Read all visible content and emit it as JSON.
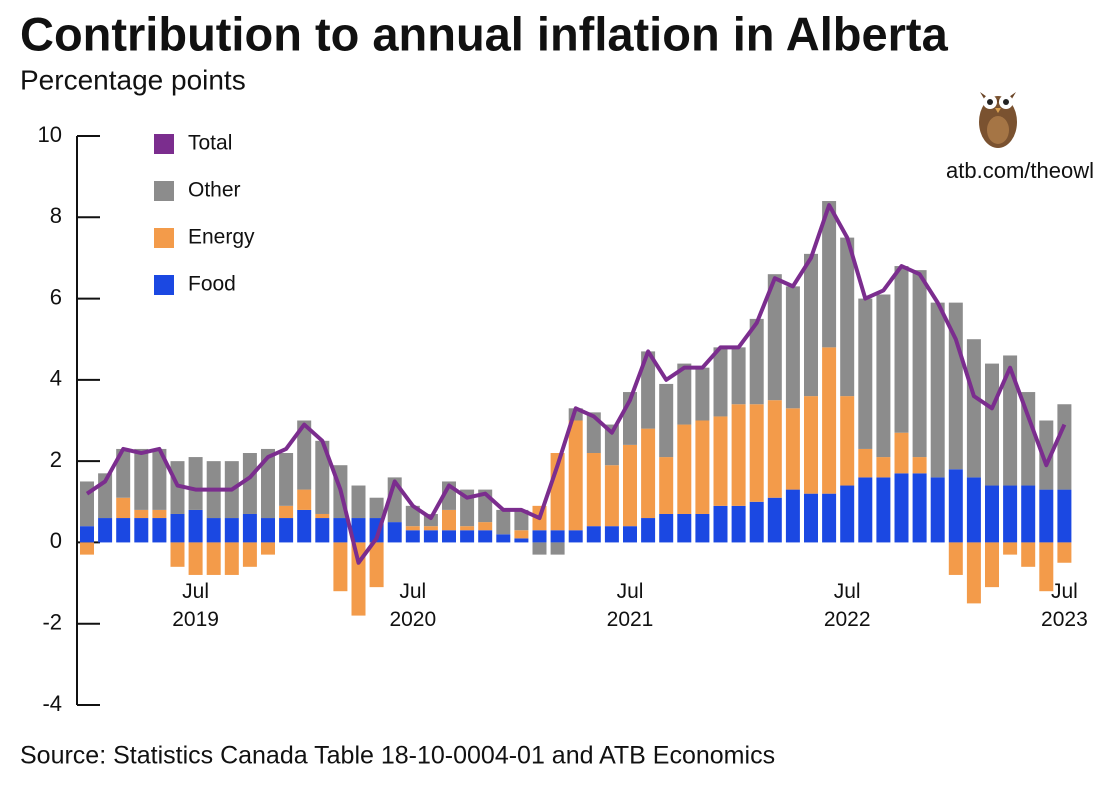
{
  "chart_data": {
    "type": "stacked-bar-line",
    "title": "Contribution to annual inflation in Alberta",
    "subtitle": "Percentage points",
    "source": "Source: Statistics Canada Table 18-10-0004-01 and ATB Economics",
    "watermark": "atb.com/theowl",
    "categories": [
      null,
      null,
      null,
      null,
      null,
      null,
      "Jul\n2019",
      null,
      null,
      null,
      null,
      null,
      null,
      null,
      null,
      null,
      null,
      null,
      "Jul\n2020",
      null,
      null,
      null,
      null,
      null,
      null,
      null,
      null,
      null,
      null,
      null,
      "Jul\n2021",
      null,
      null,
      null,
      null,
      null,
      null,
      null,
      null,
      null,
      null,
      null,
      "Jul\n2022",
      null,
      null,
      null,
      null,
      null,
      null,
      null,
      null,
      null,
      null,
      null,
      "Jul\n2023"
    ],
    "ylim": [
      -4,
      10
    ],
    "yticks": [
      -4,
      -2,
      0,
      2,
      4,
      6,
      8,
      10
    ],
    "series": [
      {
        "name": "Food",
        "color": "#1b48e2",
        "values": [
          0.4,
          0.6,
          0.6,
          0.6,
          0.6,
          0.7,
          0.8,
          0.6,
          0.6,
          0.7,
          0.6,
          0.6,
          0.8,
          0.6,
          0.6,
          0.6,
          0.6,
          0.5,
          0.3,
          0.3,
          0.3,
          0.3,
          0.3,
          0.2,
          0.1,
          0.3,
          0.3,
          0.3,
          0.4,
          0.4,
          0.4,
          0.6,
          0.7,
          0.7,
          0.7,
          0.9,
          0.9,
          1.0,
          1.1,
          1.3,
          1.2,
          1.2,
          1.4,
          1.6,
          1.6,
          1.7,
          1.7,
          1.6,
          1.8,
          1.6,
          1.4,
          1.4,
          1.4,
          1.3,
          1.3
        ]
      },
      {
        "name": "Energy",
        "color": "#f39b4a",
        "values": [
          -0.3,
          0,
          0.5,
          0.2,
          0.2,
          -0.6,
          -0.8,
          -0.8,
          -0.8,
          -0.6,
          -0.3,
          0.3,
          0.5,
          0.1,
          -1.2,
          -1.8,
          -1.1,
          0,
          0.1,
          0.1,
          0.5,
          0.1,
          0.2,
          0,
          0.2,
          0.6,
          1.9,
          2.7,
          1.8,
          1.5,
          2.0,
          2.2,
          1.4,
          2.2,
          2.3,
          2.2,
          2.5,
          2.4,
          2.4,
          2.0,
          2.4,
          3.6,
          2.2,
          0.7,
          0.5,
          1.0,
          0.4,
          0,
          -0.8,
          -1.5,
          -1.1,
          -0.3,
          -0.6,
          -1.2,
          -0.5
        ]
      },
      {
        "name": "Other",
        "color": "#8c8c8c",
        "values": [
          1.1,
          1.1,
          1.2,
          1.5,
          1.5,
          1.3,
          1.3,
          1.4,
          1.4,
          1.5,
          1.7,
          1.3,
          1.7,
          1.8,
          1.3,
          0.8,
          0.5,
          1.1,
          0.5,
          0.3,
          0.7,
          0.9,
          0.8,
          0.6,
          0.5,
          -0.3,
          -0.3,
          0.3,
          1.0,
          1.0,
          1.3,
          1.9,
          1.8,
          1.5,
          1.3,
          1.7,
          1.4,
          2.1,
          3.1,
          3.0,
          3.5,
          3.6,
          3.9,
          3.7,
          4.0,
          4.1,
          4.6,
          4.3,
          4.1,
          3.4,
          3.0,
          3.2,
          2.3,
          1.7,
          2.1
        ]
      },
      {
        "name": "Total",
        "color": "#7b2d8e",
        "values": [
          1.2,
          1.5,
          2.3,
          2.2,
          2.3,
          1.4,
          1.3,
          1.3,
          1.3,
          1.6,
          2.1,
          2.3,
          2.9,
          2.5,
          1.3,
          -0.5,
          0.1,
          1.5,
          0.9,
          0.6,
          1.4,
          1.1,
          1.2,
          0.8,
          0.8,
          0.6,
          1.9,
          3.3,
          3.1,
          2.7,
          3.5,
          4.7,
          4.0,
          4.3,
          4.3,
          4.8,
          4.8,
          5.4,
          6.5,
          6.3,
          7.0,
          8.3,
          7.5,
          6.0,
          6.2,
          6.8,
          6.6,
          5.9,
          5.0,
          3.6,
          3.3,
          4.3,
          3.1,
          1.9,
          2.9
        ]
      }
    ]
  }
}
